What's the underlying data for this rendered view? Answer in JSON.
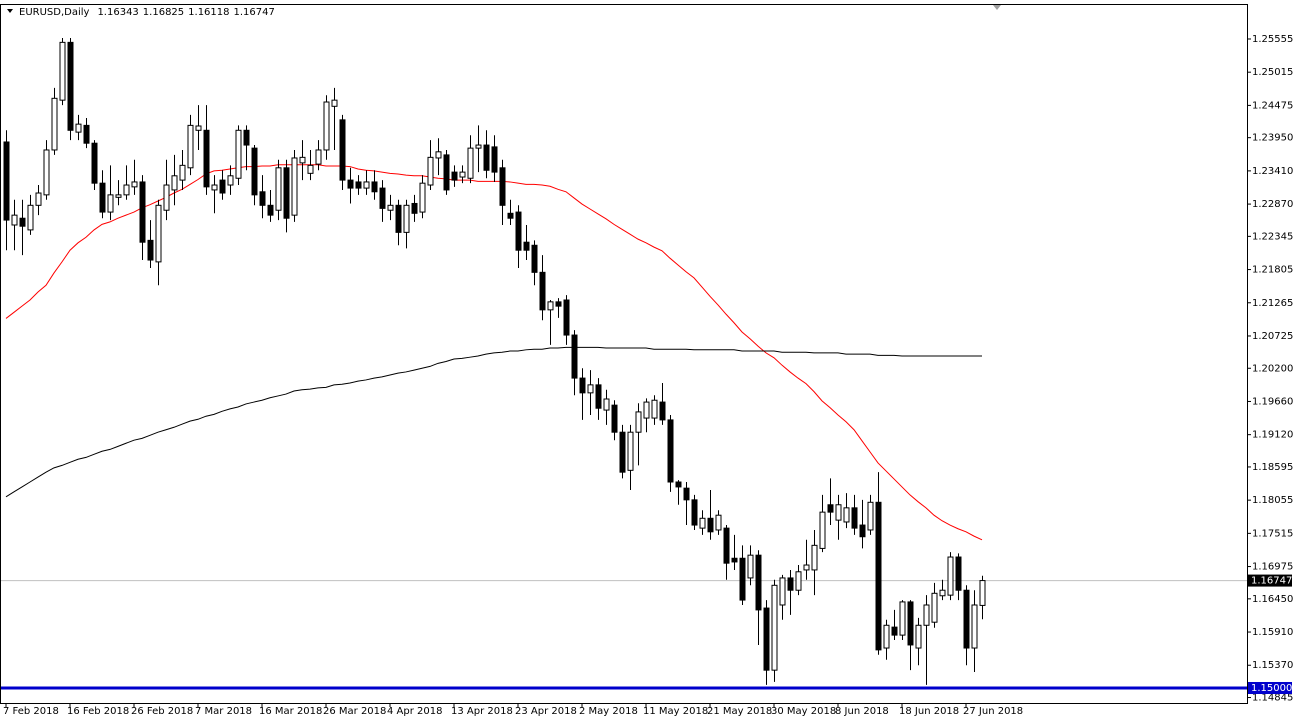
{
  "chart_data": {
    "type": "candlestick",
    "title": "EURUSD,Daily",
    "categories": [
      "7 Feb 2018",
      null,
      null,
      null,
      null,
      null,
      null,
      null,
      "16 Feb 2018",
      null,
      null,
      null,
      null,
      null,
      null,
      null,
      "26 Feb 2018",
      null,
      null,
      null,
      null,
      null,
      null,
      null,
      "7 Mar 2018",
      null,
      null,
      null,
      null,
      null,
      null,
      null,
      "16 Mar 2018",
      null,
      null,
      null,
      null,
      null,
      null,
      null,
      "26 Mar 2018",
      null,
      null,
      null,
      null,
      null,
      null,
      null,
      "4 Apr 2018",
      null,
      null,
      null,
      null,
      null,
      null,
      null,
      "13 Apr 2018",
      null,
      null,
      null,
      null,
      null,
      null,
      null,
      "23 Apr 2018",
      null,
      null,
      null,
      null,
      null,
      null,
      null,
      "2 May 2018",
      null,
      null,
      null,
      null,
      null,
      null,
      null,
      "11 May 2018",
      null,
      null,
      null,
      null,
      null,
      null,
      null,
      "21 May 2018",
      null,
      null,
      null,
      null,
      null,
      null,
      null,
      "30 May 2018",
      null,
      null,
      null,
      null,
      null,
      null,
      null,
      "8 Jun 2018",
      null,
      null,
      null,
      null,
      null,
      null,
      null,
      "18 Jun 2018",
      null,
      null,
      null,
      null,
      null,
      null,
      null,
      "27 Jun 2018",
      null,
      null
    ],
    "open": [
      1.2388,
      1.2253,
      1.2264,
      1.2245,
      1.2285,
      1.2302,
      1.2375,
      1.2456,
      1.255,
      1.2404,
      1.2415,
      1.2386,
      1.2321,
      1.2274,
      1.2298,
      1.2302,
      1.2315,
      1.2323,
      1.2228,
      1.2193,
      1.2277,
      1.231,
      1.2326,
      1.2346,
      1.2407,
      1.2407,
      1.231,
      1.2326,
      1.2318,
      1.2329,
      1.2407,
      1.2378,
      1.2307,
      1.2285,
      1.2277,
      1.2346,
      1.2269,
      1.2354,
      1.2337,
      1.2352,
      1.2375,
      1.2446,
      1.2424,
      1.2326,
      1.2323,
      1.2313,
      1.2323,
      1.2313,
      1.2277,
      1.2285,
      1.2241,
      1.2288,
      1.2274,
      1.2318,
      1.2362,
      1.2367,
      1.2339,
      1.2331,
      1.2329,
      1.2378,
      1.2383,
      1.238,
      1.2346,
      1.2272,
      1.2274,
      1.2225,
      1.222,
      1.2176,
      1.2115,
      1.2128,
      1.2131,
      1.2074,
      1.2004,
      1.198,
      1.1993,
      1.1952,
      1.196,
      1.1916,
      1.1854,
      1.1916,
      1.1939,
      1.1939,
      1.1965,
      1.1936,
      1.1835,
      1.1825,
      1.1806,
      1.176,
      1.1776,
      1.1757,
      1.176,
      1.1711,
      1.1711,
      1.1679,
      1.1716,
      1.163,
      1.1529,
      1.1635,
      1.1679,
      1.1659,
      1.1692,
      1.1692,
      1.1727,
      1.1798,
      1.1773,
      1.177,
      1.1793,
      1.1765,
      1.1757,
      1.1802,
      1.1565,
      1.1599,
      1.1586,
      1.164,
      1.1565,
      1.1602,
      1.1607,
      1.165,
      1.1651,
      1.1713,
      1.1659,
      1.1565,
      1.16343
    ],
    "high": [
      1.2407,
      1.2294,
      1.2294,
      1.2302,
      1.2318,
      1.2391,
      1.2476,
      1.2557,
      1.2557,
      1.2432,
      1.2427,
      1.2391,
      1.2342,
      1.235,
      1.2326,
      1.235,
      1.2359,
      1.2334,
      1.2261,
      1.2294,
      1.2359,
      1.2367,
      1.2375,
      1.2432,
      1.2448,
      1.2448,
      1.2334,
      1.2342,
      1.235,
      1.2415,
      1.2415,
      1.2383,
      1.2334,
      1.231,
      1.2359,
      1.2359,
      1.2375,
      1.2391,
      1.2375,
      1.2391,
      1.2464,
      1.2476,
      1.2432,
      1.2346,
      1.2334,
      1.2342,
      1.2342,
      1.2326,
      1.2302,
      1.2294,
      1.2294,
      1.2302,
      1.2334,
      1.2391,
      1.2394,
      1.2375,
      1.235,
      1.235,
      1.2399,
      1.2415,
      1.2407,
      1.2399,
      1.2359,
      1.2294,
      1.2285,
      1.2253,
      1.2228,
      1.2204,
      1.2131,
      1.2134,
      1.2139,
      1.2082,
      1.202,
      1.2017,
      1.2004,
      1.1985,
      1.1968,
      1.1928,
      1.1928,
      1.1963,
      1.1971,
      1.1976,
      1.1996,
      1.1944,
      1.1838,
      1.1835,
      1.1814,
      1.1789,
      1.1822,
      1.1789,
      1.1765,
      1.1749,
      1.1732,
      1.1732,
      1.1724,
      1.1643,
      1.1676,
      1.1684,
      1.1692,
      1.17,
      1.1741,
      1.1757,
      1.1814,
      1.1841,
      1.1814,
      1.1817,
      1.1814,
      1.1806,
      1.1814,
      1.1851,
      1.1611,
      1.1627,
      1.1643,
      1.1643,
      1.1614,
      1.1651,
      1.1671,
      1.1676,
      1.1721,
      1.1719,
      1.1667,
      1.1659,
      1.16825
    ],
    "low": [
      1.2212,
      1.2212,
      1.2204,
      1.2237,
      1.2269,
      1.2294,
      1.2367,
      1.2448,
      1.2391,
      1.2391,
      1.2378,
      1.231,
      1.2264,
      1.2261,
      1.2285,
      1.2294,
      1.2302,
      1.2196,
      1.2183,
      1.2155,
      1.2261,
      1.2285,
      1.231,
      1.2334,
      1.2375,
      1.2302,
      1.2272,
      1.2294,
      1.2302,
      1.2318,
      1.2342,
      1.2285,
      1.2264,
      1.2258,
      1.2261,
      1.2241,
      1.2258,
      1.2326,
      1.2326,
      1.2342,
      1.2359,
      1.2375,
      1.231,
      1.2288,
      1.2302,
      1.2302,
      1.2294,
      1.2258,
      1.2261,
      1.222,
      1.2215,
      1.2258,
      1.2264,
      1.231,
      1.2334,
      1.2302,
      1.2315,
      1.2321,
      1.2321,
      1.2339,
      1.2329,
      1.2323,
      1.2253,
      1.2253,
      1.2183,
      1.2196,
      1.2155,
      1.2098,
      1.2058,
      1.2102,
      1.2058,
      1.1976,
      1.1936,
      1.1944,
      1.1936,
      1.1928,
      1.1903,
      1.1841,
      1.1822,
      1.1862,
      1.1916,
      1.1928,
      1.1928,
      1.1819,
      1.1798,
      1.1765,
      1.1757,
      1.1749,
      1.1741,
      1.1749,
      1.1676,
      1.1692,
      1.1635,
      1.1667,
      1.157,
      1.1505,
      1.151,
      1.1611,
      1.1619,
      1.1651,
      1.1676,
      1.1651,
      1.1721,
      1.1765,
      1.1741,
      1.176,
      1.1749,
      1.1727,
      1.1749,
      1.1554,
      1.1546,
      1.1578,
      1.1578,
      1.1529,
      1.1537,
      1.1505,
      1.1598,
      1.1643,
      1.1643,
      1.1643,
      1.1537,
      1.1526,
      1.16118
    ],
    "close": [
      1.2261,
      1.2269,
      1.2251,
      1.2285,
      1.2305,
      1.2375,
      1.2459,
      1.255,
      1.2407,
      1.2417,
      1.2386,
      1.2321,
      1.2274,
      1.2302,
      1.2302,
      1.2318,
      1.2323,
      1.2225,
      1.2196,
      1.2285,
      1.2318,
      1.2333,
      1.235,
      1.2415,
      1.2414,
      1.2315,
      1.2318,
      1.2305,
      1.2333,
      1.2407,
      1.2383,
      1.2302,
      1.2285,
      1.2269,
      1.2346,
      1.2264,
      1.2362,
      1.2363,
      1.235,
      1.2375,
      1.2453,
      1.2456,
      1.2326,
      1.2313,
      1.2313,
      1.2323,
      1.2307,
      1.228,
      1.2285,
      1.2241,
      1.2285,
      1.2272,
      1.2321,
      1.2363,
      1.2372,
      1.231,
      1.2326,
      1.2339,
      1.2378,
      1.2383,
      1.2342,
      1.2339,
      1.2285,
      1.2264,
      1.2212,
      1.2212,
      1.2176,
      1.2115,
      1.2128,
      1.2121,
      1.2074,
      1.2004,
      1.198,
      1.1993,
      1.1955,
      1.197,
      1.1916,
      1.1851,
      1.1916,
      1.1949,
      1.1965,
      1.1968,
      1.1936,
      1.1835,
      1.1827,
      1.1806,
      1.1765,
      1.1776,
      1.1754,
      1.1781,
      1.1703,
      1.1705,
      1.1643,
      1.1716,
      1.1627,
      1.1529,
      1.1667,
      1.1679,
      1.1659,
      1.1689,
      1.17,
      1.1732,
      1.1786,
      1.1786,
      1.1798,
      1.1793,
      1.176,
      1.1746,
      1.1802,
      1.1562,
      1.1602,
      1.1586,
      1.164,
      1.157,
      1.1602,
      1.1635,
      1.1654,
      1.1659,
      1.1713,
      1.1659,
      1.1565,
      1.1635,
      1.16747
    ],
    "up_color": "#ffffff",
    "down_color": "#000000",
    "wick_color": "#000000",
    "lines": [
      {
        "color": "#ff0000",
        "values": [
          1.2101,
          1.2111,
          1.2121,
          1.2131,
          1.2144,
          1.2155,
          1.2175,
          1.2193,
          1.2212,
          1.2224,
          1.2233,
          1.2245,
          1.2254,
          1.2258,
          1.2264,
          1.2269,
          1.2274,
          1.2281,
          1.2286,
          1.2292,
          1.2298,
          1.2305,
          1.2311,
          1.2319,
          1.2327,
          1.2336,
          1.2341,
          1.2342,
          1.2344,
          1.2346,
          1.2348,
          1.2348,
          1.2349,
          1.2349,
          1.2351,
          1.2351,
          1.2351,
          1.2351,
          1.2351,
          1.2351,
          1.2349,
          1.2349,
          1.2349,
          1.2348,
          1.2344,
          1.2342,
          1.2341,
          1.2339,
          1.2337,
          1.2336,
          1.2334,
          1.2333,
          1.2333,
          1.2331,
          1.2329,
          1.2328,
          1.2326,
          1.2326,
          1.2326,
          1.2324,
          1.2324,
          1.2324,
          1.2324,
          1.2323,
          1.2321,
          1.2319,
          1.2319,
          1.2318,
          1.2316,
          1.2311,
          1.2307,
          1.2297,
          1.2287,
          1.2279,
          1.2271,
          1.2263,
          1.2254,
          1.2246,
          1.2238,
          1.223,
          1.2224,
          1.2217,
          1.2211,
          1.2199,
          1.2188,
          1.2177,
          1.2167,
          1.2152,
          1.2137,
          1.2123,
          1.2108,
          1.2094,
          1.2079,
          1.2068,
          1.2056,
          1.2045,
          1.2037,
          1.2025,
          1.2014,
          1.2004,
          1.1995,
          1.1982,
          1.1967,
          1.1956,
          1.1944,
          1.1933,
          1.192,
          1.1902,
          1.1884,
          1.1866,
          1.1853,
          1.184,
          1.1827,
          1.1814,
          1.1803,
          1.1793,
          1.1781,
          1.1772,
          1.1765,
          1.1759,
          1.1754,
          1.1747,
          1.1741
        ]
      },
      {
        "color": "#000000",
        "values": [
          1.1811,
          1.1819,
          1.1827,
          1.1835,
          1.1843,
          1.1851,
          1.1858,
          1.1862,
          1.1867,
          1.1872,
          1.1875,
          1.188,
          1.1885,
          1.1888,
          1.1893,
          1.1898,
          1.1903,
          1.1906,
          1.1911,
          1.1916,
          1.192,
          1.1924,
          1.1929,
          1.1934,
          1.1937,
          1.1942,
          1.1945,
          1.195,
          1.1954,
          1.1957,
          1.1962,
          1.1965,
          1.1968,
          1.1972,
          1.1975,
          1.1978,
          1.1983,
          1.1985,
          1.1986,
          1.1988,
          1.1989,
          1.1993,
          1.1994,
          1.1996,
          1.1999,
          1.2001,
          1.2004,
          1.2006,
          1.2009,
          1.2012,
          1.2014,
          1.2017,
          1.202,
          1.2023,
          1.2028,
          1.2031,
          1.2035,
          1.2036,
          1.2038,
          1.204,
          1.2043,
          1.2045,
          1.2046,
          1.2048,
          1.2048,
          1.205,
          1.2051,
          1.2051,
          1.2053,
          1.2053,
          1.2054,
          1.2054,
          1.2054,
          1.2054,
          1.2054,
          1.2053,
          1.2053,
          1.2053,
          1.2053,
          1.2053,
          1.2053,
          1.2051,
          1.2051,
          1.2051,
          1.2051,
          1.2051,
          1.205,
          1.205,
          1.205,
          1.205,
          1.205,
          1.205,
          1.2048,
          1.2048,
          1.2048,
          1.2048,
          1.2048,
          1.2046,
          1.2046,
          1.2046,
          1.2046,
          1.2045,
          1.2045,
          1.2045,
          1.2045,
          1.2043,
          1.2043,
          1.2043,
          1.2043,
          1.2041,
          1.2041,
          1.2041,
          1.204,
          1.204,
          1.204,
          1.204,
          1.204,
          1.204,
          1.204,
          1.204,
          1.204,
          1.204,
          1.204
        ]
      }
    ],
    "price_line": true,
    "price_line_color": "#c0c0c0",
    "hlines": [
      {
        "value": 1.15,
        "label": "1.15000",
        "color": "#0000cc"
      }
    ],
    "ylim": [
      1.14756,
      1.26189
    ],
    "yticks": [
      1.25555,
      1.25015,
      1.24475,
      {
        "value": 1.2395,
        "label": "1.23950"
      },
      {
        "value": 1.2341,
        "label": "1.23410"
      },
      {
        "value": 1.2287,
        "label": "1.22870"
      },
      1.22345,
      1.21805,
      1.21265,
      1.20725,
      {
        "value": 1.202,
        "label": "1.20200"
      },
      {
        "value": 1.1966,
        "label": "1.19660"
      },
      {
        "value": 1.1912,
        "label": "1.19120"
      },
      1.18595,
      1.18055,
      1.17515,
      1.16975,
      {
        "value": 1.1645,
        "label": "1.16450"
      },
      {
        "value": 1.1591,
        "label": "1.15910"
      },
      {
        "value": 1.1537,
        "label": "1.15370"
      },
      1.14845
    ],
    "grid": false
  }
}
